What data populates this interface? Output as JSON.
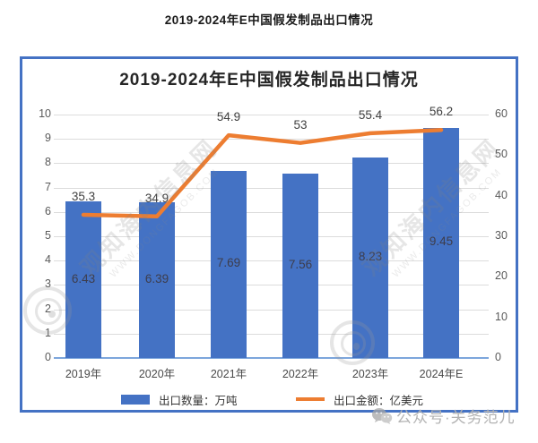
{
  "page": {
    "title": "2019-2024年E中国假发制品出口情况"
  },
  "chart": {
    "title": "2019-2024年E中国假发制品出口情况"
  },
  "chart_data": {
    "type": "combo-bar-line",
    "title": "2019-2024年E中国假发制品出口情况",
    "categories": [
      "2019年",
      "2020年",
      "2021年",
      "2022年",
      "2023年",
      "2024年E"
    ],
    "series": [
      {
        "name": "出口数量：万吨",
        "type": "bar",
        "axis": "left",
        "color": "#4472C4",
        "values": [
          6.43,
          6.39,
          7.69,
          7.56,
          8.23,
          9.45
        ],
        "labels": [
          "6.43",
          "6.39",
          "7.69",
          "7.56",
          "8.23",
          "9.45"
        ]
      },
      {
        "name": "出口金额：亿美元",
        "type": "line",
        "axis": "right",
        "color": "#ED7D31",
        "values": [
          35.3,
          34.9,
          54.9,
          53,
          55.4,
          56.2
        ],
        "labels": [
          "35.3",
          "34.9",
          "54.9",
          "53",
          "55.4",
          "56.2"
        ]
      }
    ],
    "left_axis": {
      "min": 0,
      "max": 10,
      "ticks": [
        "10",
        "9",
        "8",
        "7",
        "6",
        "5",
        "4",
        "3",
        "2",
        "1",
        "0"
      ]
    },
    "right_axis": {
      "min": 0,
      "max": 60,
      "ticks": [
        "60",
        "50",
        "40",
        "30",
        "20",
        "10",
        "0"
      ]
    },
    "grid": true,
    "legend_position": "bottom"
  },
  "watermark": {
    "site_name": "观知海内信息网",
    "site_url": "WWW.DONGFAGOB.COM"
  },
  "footer": {
    "wechat_label": "公众号·关务范儿"
  },
  "colors": {
    "bar": "#4472C4",
    "line": "#ED7D31",
    "frame_border": "#4472C4",
    "axis_line": "#7CA6DC",
    "gridline": "#dcdcdc"
  }
}
